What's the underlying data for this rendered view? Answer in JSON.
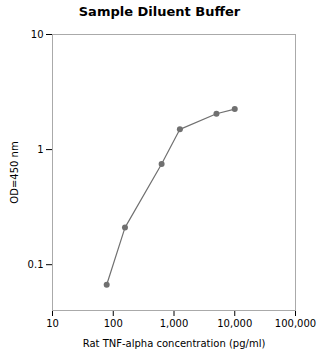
{
  "chart_data": {
    "type": "line",
    "title": "Sample Diluent Buffer",
    "xlabel": "Rat TNF-alpha concentration (pg/ml)",
    "ylabel": "OD=450 nm",
    "x": [
      78,
      156,
      625,
      1250,
      5000,
      10000
    ],
    "values": [
      0.067,
      0.21,
      0.75,
      1.5,
      2.05,
      2.25
    ],
    "color": "#707070",
    "marker": "circle",
    "log": true,
    "xlim": [
      10,
      100000
    ],
    "ylim": [
      0.04,
      10
    ],
    "xticks": [
      10,
      100,
      {
        "value": 1000,
        "label": "1,000"
      },
      {
        "value": 10000,
        "label": "10,000"
      },
      {
        "value": 100000,
        "label": "100,000"
      }
    ],
    "yticks": [
      0.1,
      1,
      10
    ],
    "grid": false
  }
}
